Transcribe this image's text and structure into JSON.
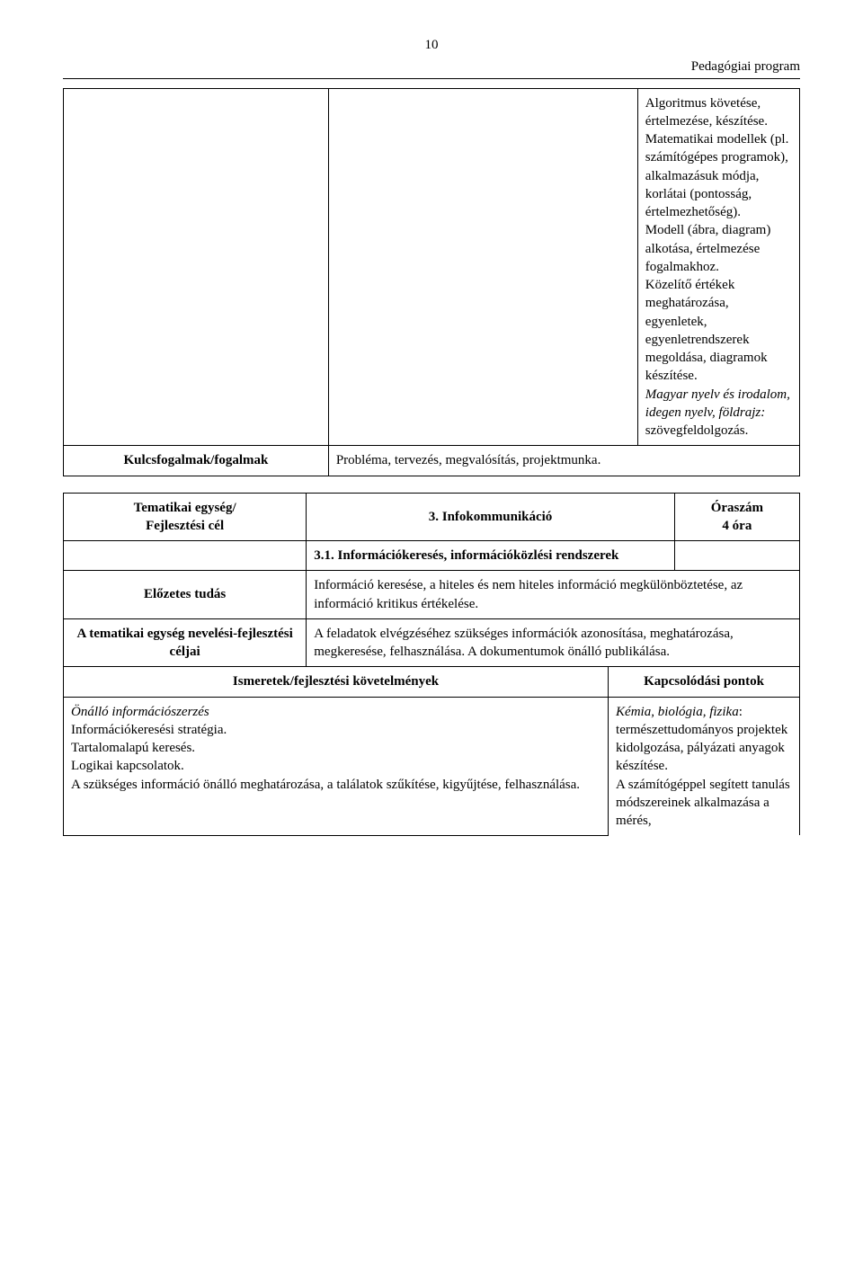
{
  "header": {
    "page_number": "10",
    "running_head": "Pedagógiai program"
  },
  "table1": {
    "r1c3_paragraphs": [
      {
        "text": "Algoritmus követése, értelmezése, készítése."
      },
      {
        "text": "Matematikai modellek (pl. számítógépes programok), alkalmazásuk módja, korlátai (pontosság, értelmezhetőség)."
      },
      {
        "text": "Modell (ábra, diagram) alkotása, értelmezése fogalmakhoz."
      },
      {
        "text": "Közelítő értékek meghatározása, egyenletek, egyenletrendszerek megoldása, diagramok készítése."
      },
      {
        "italic_prefix": "Magyar nyelv és irodalom, idegen nyelv, földrajz:",
        "rest": " szövegfeldolgozás."
      }
    ],
    "r2c1": "Kulcsfogalmak/fogalmak",
    "r2c2": "Probléma, tervezés, megvalósítás, projektmunka."
  },
  "table2": {
    "r1c1_l1": "Tematikai egység/",
    "r1c1_l2": "Fejlesztési cél",
    "r1c2": "3. Infokommunikáció",
    "r1c3_l1": "Óraszám",
    "r1c3_l2": "4 óra",
    "r2c2": "3.1. Információkeresés, információközlési rendszerek",
    "r3c1": "Előzetes tudás",
    "r3c2": "Információ keresése, a hiteles és nem hiteles információ megkülönböztetése, az információ kritikus értékelése.",
    "r4c1": "A tematikai egység nevelési-fejlesztési céljai",
    "r4c2": "A feladatok elvégzéséhez szükséges információk azonosítása, meghatározása, megkeresése, felhasználása. A dokumentumok önálló publikálása."
  },
  "table3": {
    "h1": "Ismeretek/fejlesztési követelmények",
    "h2": "Kapcsolódási pontok",
    "left_italic": "Önálló információszerzés",
    "left_lines": [
      "Információkeresési stratégia.",
      "Tartalomalapú keresés.",
      "Logikai kapcsolatok.",
      "A szükséges információ önálló meghatározása, a találatok szűkítése, kigyűjtése, felhasználása."
    ],
    "right_italic": "Kémia, biológia, fizika",
    "right_text": ": természettudományos projektek kidolgozása, pályázati anyagok készítése.",
    "right_text2": "A számítógéppel segített tanulás módszereinek ",
    "right_last": "alkalmazása a mérés,"
  }
}
